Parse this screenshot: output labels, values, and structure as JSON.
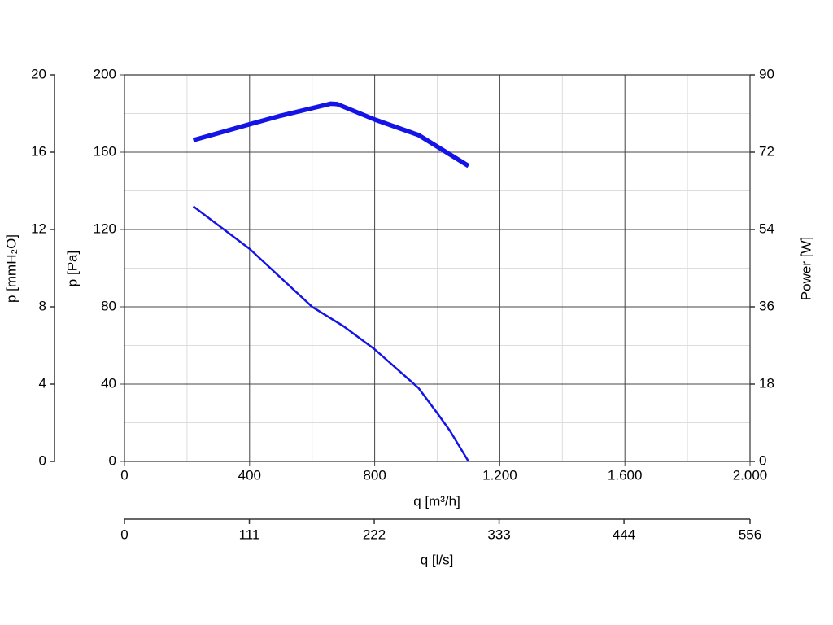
{
  "chart_data": {
    "type": "line",
    "xlabel": "q [m³/h]",
    "ylabel": "p [Pa]",
    "y2label": "Power [W]",
    "xlim": [
      0,
      2000
    ],
    "xticks": [
      0,
      400,
      800,
      {
        "value": 1200,
        "label": "1.200"
      },
      {
        "value": 1600,
        "label": "1.600"
      },
      {
        "value": 2000,
        "label": "2.000"
      }
    ],
    "xminorticks": [
      200,
      600,
      1000,
      1400,
      1800
    ],
    "ylim": [
      0,
      200
    ],
    "yticks": [
      0,
      40,
      80,
      120,
      160,
      200
    ],
    "yminorticks": [
      20,
      60,
      100,
      140,
      180
    ],
    "y2lim": [
      0,
      90
    ],
    "y2ticks": [
      0,
      18,
      36,
      54,
      72,
      90
    ],
    "y3label": "p [mmH₂O]",
    "y3lim": [
      0,
      20
    ],
    "y3ticks": [
      0,
      4,
      8,
      12,
      16,
      20
    ],
    "x2label": "q [l/s]",
    "x2lim": [
      0,
      556
    ],
    "x2ticks": [
      0,
      111,
      222,
      333,
      444,
      556
    ],
    "grid": true,
    "series": [
      {
        "color": "#1414e6",
        "x": [
          220,
          400,
          600,
          700,
          800,
          940,
          1000,
          1040,
          1100
        ],
        "values": [
          132,
          110,
          80,
          70,
          58,
          38,
          25,
          16,
          0
        ]
      },
      {
        "color": "#1414e6",
        "axis": "y2",
        "x": [
          220,
          400,
          500,
          660,
          680,
          800,
          940,
          1100
        ],
        "values": [
          74.8,
          78.5,
          80.5,
          83.3,
          83.2,
          79.6,
          76,
          68.8
        ]
      }
    ]
  }
}
